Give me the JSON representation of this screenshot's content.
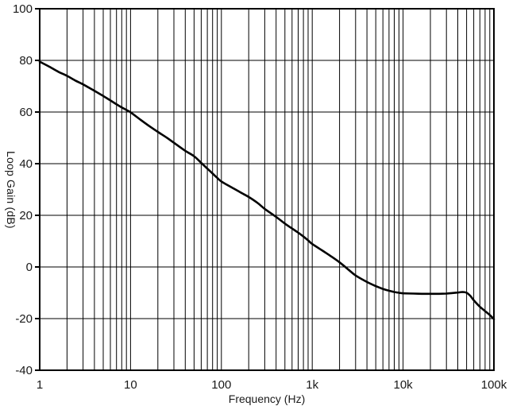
{
  "figure": {
    "background": "#ffffff",
    "frame_color": "#000000",
    "grid_color": "#000000",
    "curve_color": "#000000",
    "text_color": "#1a1a1a"
  },
  "chart_data": {
    "type": "line",
    "title": "",
    "xlabel": "Frequency (Hz)",
    "ylabel": "Loop Gain (dB)",
    "x_scale": "log",
    "xlim": [
      1,
      100000
    ],
    "ylim": [
      -40,
      100
    ],
    "grid": {
      "x_minor_log": true,
      "y_major_step": 20,
      "legend": "none"
    },
    "x_ticks": [
      {
        "v": 1,
        "label": "1"
      },
      {
        "v": 10,
        "label": "10"
      },
      {
        "v": 100,
        "label": "100"
      },
      {
        "v": 1000,
        "label": "1k"
      },
      {
        "v": 10000,
        "label": "10k"
      },
      {
        "v": 100000,
        "label": "100k"
      }
    ],
    "y_ticks": [
      {
        "v": 100,
        "label": "100"
      },
      {
        "v": 80,
        "label": "80"
      },
      {
        "v": 60,
        "label": "60"
      },
      {
        "v": 40,
        "label": "40"
      },
      {
        "v": 20,
        "label": "20"
      },
      {
        "v": 0,
        "label": "0"
      },
      {
        "v": -20,
        "label": "-20"
      },
      {
        "v": -40,
        "label": "-40"
      }
    ],
    "line_width": 2.6,
    "series": [
      {
        "points": [
          [
            1,
            79.5
          ],
          [
            1.3,
            77.4
          ],
          [
            1.6,
            75.6
          ],
          [
            2,
            74.0
          ],
          [
            2.5,
            72.1
          ],
          [
            3,
            70.7
          ],
          [
            4,
            68.2
          ],
          [
            5,
            66.2
          ],
          [
            6,
            64.5
          ],
          [
            7,
            63.0
          ],
          [
            8,
            61.8
          ],
          [
            9,
            60.8
          ],
          [
            10,
            59.9
          ],
          [
            13,
            56.9
          ],
          [
            16,
            54.6
          ],
          [
            20,
            52.3
          ],
          [
            25,
            50.1
          ],
          [
            30,
            48.1
          ],
          [
            40,
            45.0
          ],
          [
            50,
            42.9
          ],
          [
            60,
            40.3
          ],
          [
            70,
            38.1
          ],
          [
            80,
            36.2
          ],
          [
            90,
            34.5
          ],
          [
            100,
            33.1
          ],
          [
            130,
            30.8
          ],
          [
            160,
            29.0
          ],
          [
            200,
            27.1
          ],
          [
            250,
            24.8
          ],
          [
            300,
            22.5
          ],
          [
            400,
            19.4
          ],
          [
            500,
            16.8
          ],
          [
            600,
            14.9
          ],
          [
            700,
            13.3
          ],
          [
            800,
            11.8
          ],
          [
            900,
            10.3
          ],
          [
            1000,
            8.9
          ],
          [
            1300,
            6.3
          ],
          [
            1600,
            4.2
          ],
          [
            2000,
            1.8
          ],
          [
            2500,
            -1.0
          ],
          [
            3000,
            -3.3
          ],
          [
            4000,
            -5.8
          ],
          [
            5000,
            -7.4
          ],
          [
            6000,
            -8.5
          ],
          [
            7000,
            -9.2
          ],
          [
            8000,
            -9.7
          ],
          [
            9000,
            -10.0
          ],
          [
            10000,
            -10.2
          ],
          [
            13000,
            -10.3
          ],
          [
            16000,
            -10.4
          ],
          [
            20000,
            -10.4
          ],
          [
            25000,
            -10.4
          ],
          [
            30000,
            -10.3
          ],
          [
            35000,
            -10.1
          ],
          [
            40000,
            -9.9
          ],
          [
            45000,
            -9.7
          ],
          [
            50000,
            -10.0
          ],
          [
            55000,
            -11.2
          ],
          [
            60000,
            -12.9
          ],
          [
            70000,
            -15.4
          ],
          [
            80000,
            -17.1
          ],
          [
            90000,
            -18.6
          ],
          [
            100000,
            -20.2
          ]
        ]
      }
    ]
  }
}
